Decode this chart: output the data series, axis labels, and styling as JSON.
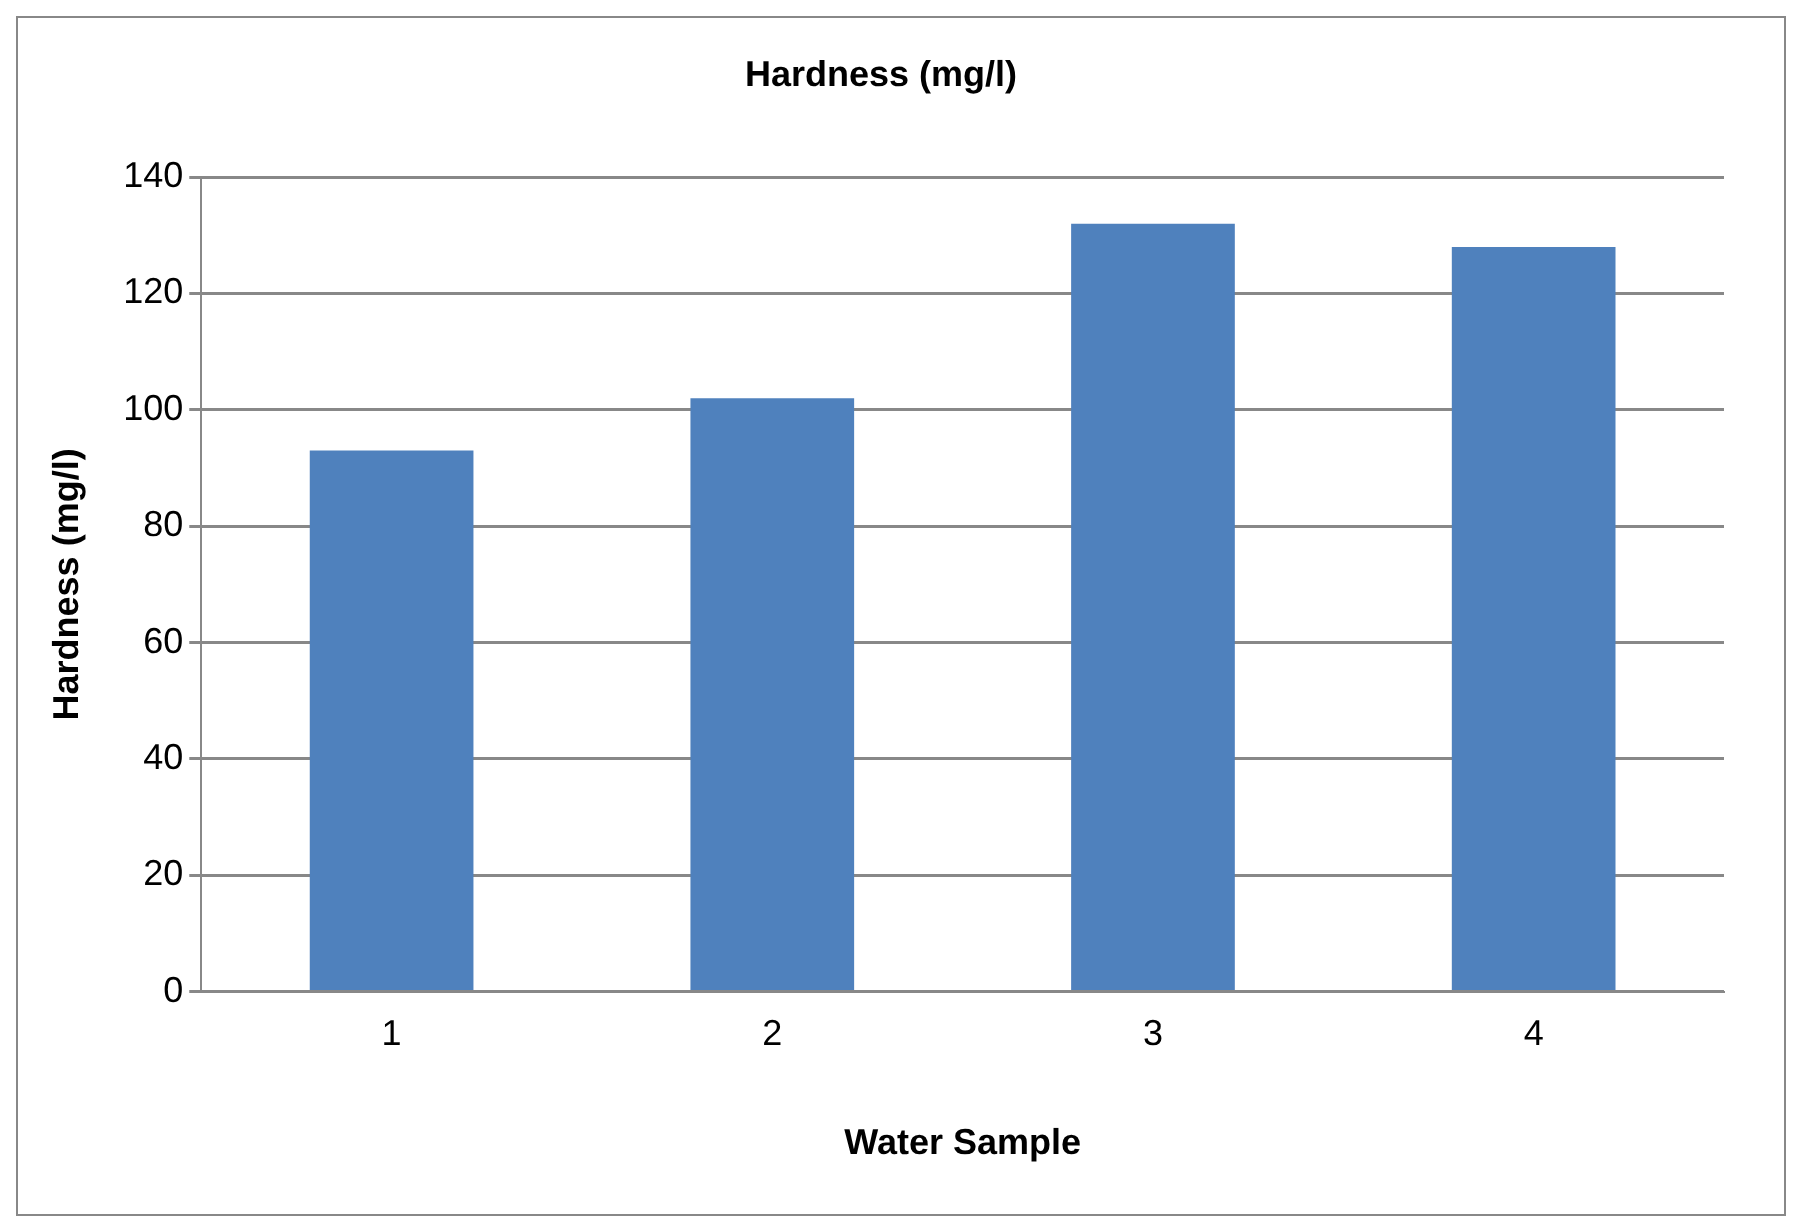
{
  "chart_data": {
    "type": "bar",
    "title": "Hardness (mg/l)",
    "xlabel": "Water Sample",
    "ylabel": "Hardness (mg/l)",
    "categories": [
      "1",
      "2",
      "3",
      "4"
    ],
    "values": [
      93,
      102,
      132,
      128
    ],
    "color": "#4f81bd",
    "ylim": [
      0,
      140
    ],
    "yticks": [
      0,
      20,
      40,
      60,
      80,
      100,
      120,
      140
    ],
    "grid": "y",
    "legend": false
  }
}
